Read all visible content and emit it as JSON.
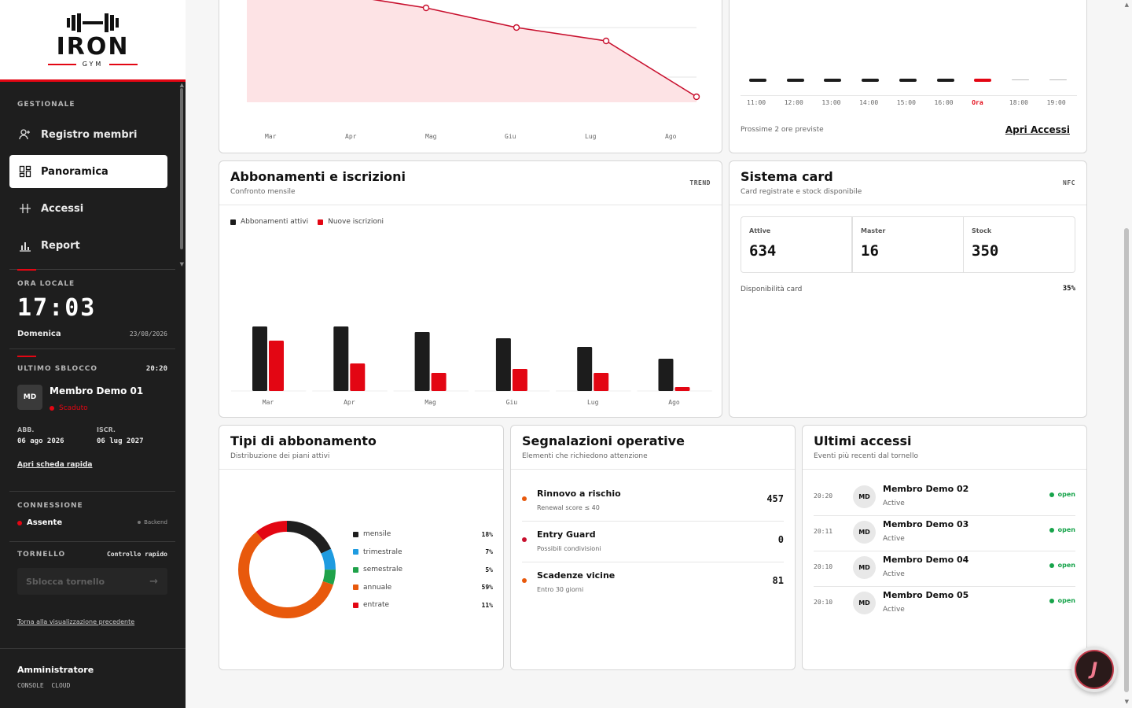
{
  "brand": {
    "name": "IRON",
    "sub": "GYM"
  },
  "sidebar": {
    "section_label": "GESTIONALE",
    "nav": [
      {
        "label": "Registro membri",
        "icon": "user-plus-icon",
        "active": false
      },
      {
        "label": "Panoramica",
        "icon": "dashboard-icon",
        "active": true
      },
      {
        "label": "Accessi",
        "icon": "access-icon",
        "active": false
      },
      {
        "label": "Report",
        "icon": "bar-chart-icon",
        "active": false
      }
    ],
    "clock": {
      "label": "ORA LOCALE",
      "hours": "17",
      "minutes": "03",
      "day": "Domenica",
      "date": "23/08/2026"
    },
    "last_unlock": {
      "label": "ULTIMO SBLOCCO",
      "time": "20:20",
      "avatar": "MD",
      "name": "Membro Demo 01",
      "status": "Scaduto",
      "abb_label": "ABB.",
      "abb_value": "06 ago 2026",
      "iscr_label": "ISCR.",
      "iscr_value": "06 lug 2027",
      "link": "Apri scheda rapida"
    },
    "connection": {
      "label": "CONNESSIONE",
      "status": "Assente",
      "backend": "Backend"
    },
    "turnstile": {
      "label": "TORNELLO",
      "quick": "Controllo rapido",
      "placeholder": "Sblocca tornello",
      "back_link": "Torna alla visualizzazione precedente"
    },
    "user": {
      "name": "Amministratore",
      "sub": "CONSOLE  CLOUD"
    }
  },
  "members_trend": {
    "x_labels": [
      "Mar",
      "Apr",
      "Mag",
      "Giu",
      "Lug",
      "Ago"
    ]
  },
  "hourly": {
    "hours": [
      "11:00",
      "12:00",
      "13:00",
      "14:00",
      "15:00",
      "16:00",
      "Ora",
      "18:00",
      "19:00"
    ],
    "forecast_note": "Prossime 2 ore previste",
    "link": "Apri Accessi"
  },
  "subscriptions": {
    "title": "Abbonamenti e iscrizioni",
    "subtitle": "Confronto mensile",
    "tag": "TREND",
    "legend": [
      "Abbonamenti attivi",
      "Nuove iscrizioni"
    ]
  },
  "chart_data": {
    "type": "bar",
    "categories": [
      "Mar",
      "Apr",
      "Mag",
      "Giu",
      "Lug",
      "Ago"
    ],
    "series": [
      {
        "name": "Abbonamenti attivi",
        "values": [
          82,
          82,
          75,
          67,
          56,
          41
        ]
      },
      {
        "name": "Nuove iscrizioni",
        "values": [
          64,
          35,
          23,
          28,
          23,
          5
        ]
      }
    ],
    "ylim": [
      0,
      100
    ],
    "title": "Abbonamenti e iscrizioni",
    "xlabel": "",
    "ylabel": ""
  },
  "cards_system": {
    "title": "Sistema card",
    "subtitle": "Card registrate e stock disponibile",
    "tag": "NFC",
    "stats": [
      {
        "label": "Attive",
        "value": "634"
      },
      {
        "label": "Master",
        "value": "16"
      },
      {
        "label": "Stock",
        "value": "350"
      }
    ],
    "availability_label": "Disponibilità card",
    "availability_value": "35%"
  },
  "plans": {
    "title": "Tipi di abbonamento",
    "subtitle": "Distribuzione dei piani attivi",
    "items": [
      {
        "name": "mensile",
        "pct": "18%",
        "value": 18,
        "color": "#1f1f1f"
      },
      {
        "name": "trimestrale",
        "pct": "7%",
        "value": 7,
        "color": "#1e9be0"
      },
      {
        "name": "semestrale",
        "pct": "5%",
        "value": 5,
        "color": "#1fa24a"
      },
      {
        "name": "annuale",
        "pct": "59%",
        "value": 59,
        "color": "#e8590c"
      },
      {
        "name": "entrate",
        "pct": "11%",
        "value": 11,
        "color": "#e30613"
      }
    ]
  },
  "alerts": {
    "title": "Segnalazioni operative",
    "subtitle": "Elementi che richiedono attenzione",
    "items": [
      {
        "title": "Rinnovo a rischio",
        "sub": "Renewal score ≤ 40",
        "value": "457",
        "color": "#e8590c"
      },
      {
        "title": "Entry Guard",
        "sub": "Possibili condivisioni",
        "value": "0",
        "color": "#c8102e"
      },
      {
        "title": "Scadenze vicine",
        "sub": "Entro 30 giorni",
        "value": "81",
        "color": "#e8590c"
      }
    ]
  },
  "recent": {
    "title": "Ultimi accessi",
    "subtitle": "Eventi più recenti dal tornello",
    "items": [
      {
        "time": "20:20",
        "avatar": "MD",
        "name": "Membro Demo 02",
        "status": "Active",
        "badge": "open"
      },
      {
        "time": "20:11",
        "avatar": "MD",
        "name": "Membro Demo 03",
        "status": "Active",
        "badge": "open"
      },
      {
        "time": "20:10",
        "avatar": "MD",
        "name": "Membro Demo 04",
        "status": "Active",
        "badge": "open"
      },
      {
        "time": "20:10",
        "avatar": "MD",
        "name": "Membro Demo 05",
        "status": "Active",
        "badge": "open"
      }
    ]
  },
  "fab_label": "J",
  "colors": {
    "accent": "#e30613",
    "sidebar": "#1e1e1e",
    "ok": "#16a34a"
  }
}
